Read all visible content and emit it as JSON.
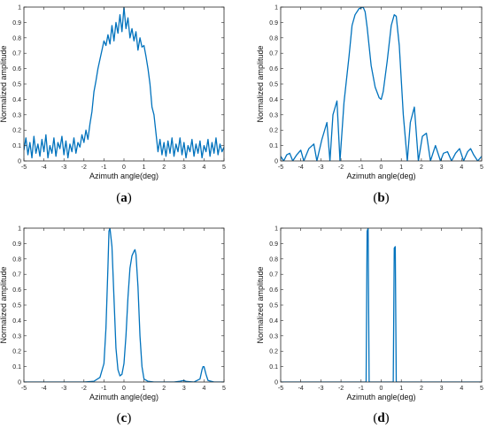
{
  "chart_data": [
    {
      "id": "a",
      "type": "line",
      "caption": "a",
      "xlabel": "Azimuth angle(deg)",
      "ylabel": "Normalized amplitude",
      "xlim": [
        -5,
        5
      ],
      "ylim": [
        0,
        1
      ],
      "xticks": [
        "-5",
        "-4",
        "-3",
        "-2",
        "-1",
        "0",
        "1",
        "2",
        "3",
        "4",
        "5"
      ],
      "yticks": [
        "0",
        "0.1",
        "0.2",
        "0.3",
        "0.4",
        "0.5",
        "0.6",
        "0.7",
        "0.8",
        "0.9",
        "1"
      ],
      "color": "#0072BD",
      "series": [
        {
          "x": [
            -5,
            -4.9,
            -4.8,
            -4.7,
            -4.6,
            -4.5,
            -4.4,
            -4.3,
            -4.2,
            -4.1,
            -4,
            -3.9,
            -3.8,
            -3.7,
            -3.6,
            -3.5,
            -3.4,
            -3.3,
            -3.2,
            -3.1,
            -3,
            -2.9,
            -2.8,
            -2.7,
            -2.6,
            -2.5,
            -2.4,
            -2.3,
            -2.2,
            -2.1,
            -2,
            -1.9,
            -1.8,
            -1.7,
            -1.6,
            -1.5,
            -1.4,
            -1.3,
            -1.2,
            -1.1,
            -1,
            -0.9,
            -0.8,
            -0.7,
            -0.6,
            -0.5,
            -0.4,
            -0.3,
            -0.2,
            -0.1,
            0,
            0.1,
            0.2,
            0.3,
            0.4,
            0.5,
            0.6,
            0.7,
            0.8,
            0.9,
            1,
            1.1,
            1.2,
            1.3,
            1.4,
            1.5,
            1.6,
            1.7,
            1.8,
            1.9,
            2,
            2.1,
            2.2,
            2.3,
            2.4,
            2.5,
            2.6,
            2.7,
            2.8,
            2.9,
            3,
            3.1,
            3.2,
            3.3,
            3.4,
            3.5,
            3.6,
            3.7,
            3.8,
            3.9,
            4,
            4.1,
            4.2,
            4.3,
            4.4,
            4.5,
            4.6,
            4.7,
            4.8,
            4.9,
            5
          ],
          "y": [
            0.07,
            0.15,
            0.04,
            0.12,
            0.02,
            0.16,
            0.05,
            0.11,
            0.03,
            0.14,
            0.06,
            0.17,
            0.02,
            0.1,
            0.05,
            0.15,
            0.03,
            0.12,
            0.08,
            0.16,
            0.04,
            0.13,
            0.02,
            0.11,
            0.06,
            0.15,
            0.05,
            0.12,
            0.09,
            0.17,
            0.12,
            0.2,
            0.14,
            0.24,
            0.32,
            0.45,
            0.52,
            0.6,
            0.66,
            0.72,
            0.78,
            0.75,
            0.82,
            0.76,
            0.88,
            0.78,
            0.9,
            0.83,
            0.95,
            0.84,
            1.0,
            0.86,
            0.93,
            0.8,
            0.86,
            0.78,
            0.84,
            0.72,
            0.8,
            0.74,
            0.75,
            0.68,
            0.6,
            0.5,
            0.35,
            0.3,
            0.18,
            0.06,
            0.14,
            0.04,
            0.12,
            0.03,
            0.13,
            0.05,
            0.15,
            0.03,
            0.11,
            0.06,
            0.15,
            0.04,
            0.12,
            0.02,
            0.1,
            0.06,
            0.14,
            0.03,
            0.11,
            0.05,
            0.13,
            0.02,
            0.1,
            0.06,
            0.14,
            0.03,
            0.12,
            0.05,
            0.15,
            0.04,
            0.11,
            0.06,
            0.09
          ]
        }
      ]
    },
    {
      "id": "b",
      "type": "line",
      "caption": "b",
      "xlabel": "Azimuth angle(deg)",
      "ylabel": "Normalized amplitude",
      "xlim": [
        -5,
        5
      ],
      "ylim": [
        0,
        1
      ],
      "xticks": [
        "-5",
        "-4",
        "-3",
        "-2",
        "-1",
        "0",
        "1",
        "2",
        "3",
        "4",
        "5"
      ],
      "yticks": [
        "0",
        "0.1",
        "0.2",
        "0.3",
        "0.4",
        "0.5",
        "0.6",
        "0.7",
        "0.8",
        "0.9",
        "1"
      ],
      "color": "#0072BD",
      "series": [
        {
          "x": [
            -5,
            -4.85,
            -4.7,
            -4.55,
            -4.4,
            -4.2,
            -4.0,
            -3.85,
            -3.6,
            -3.35,
            -3.2,
            -2.95,
            -2.7,
            -2.55,
            -2.4,
            -2.2,
            -2.05,
            -1.85,
            -1.6,
            -1.45,
            -1.3,
            -1.1,
            -0.9,
            -0.8,
            -0.7,
            -0.5,
            -0.3,
            -0.1,
            0.0,
            0.1,
            0.3,
            0.5,
            0.65,
            0.75,
            0.9,
            1.1,
            1.3,
            1.45,
            1.65,
            1.85,
            2.05,
            2.25,
            2.45,
            2.7,
            2.95,
            3.1,
            3.3,
            3.5,
            3.7,
            3.9,
            4.1,
            4.3,
            4.45,
            4.6,
            4.8,
            5
          ],
          "y": [
            0.03,
            0.0,
            0.04,
            0.05,
            0.0,
            0.04,
            0.07,
            0.0,
            0.08,
            0.11,
            0.0,
            0.14,
            0.25,
            0.0,
            0.3,
            0.39,
            0.0,
            0.38,
            0.68,
            0.88,
            0.95,
            0.99,
            1.0,
            0.97,
            0.87,
            0.62,
            0.48,
            0.41,
            0.4,
            0.45,
            0.65,
            0.88,
            0.95,
            0.94,
            0.75,
            0.3,
            0.0,
            0.25,
            0.35,
            0.0,
            0.16,
            0.18,
            0.0,
            0.1,
            0.0,
            0.05,
            0.06,
            0.0,
            0.05,
            0.08,
            0.0,
            0.06,
            0.08,
            0.04,
            0.0,
            0.03
          ]
        }
      ]
    },
    {
      "id": "c",
      "type": "line",
      "caption": "c",
      "xlabel": "Azimuth angle(deg)",
      "ylabel": "Normalized amplitude",
      "xlim": [
        -5,
        5
      ],
      "ylim": [
        0,
        1
      ],
      "xticks": [
        "-5",
        "-4",
        "-3",
        "-2",
        "-1",
        "0",
        "1",
        "2",
        "3",
        "4",
        "5"
      ],
      "yticks": [
        "0",
        "0.1",
        "0.2",
        "0.3",
        "0.4",
        "0.5",
        "0.6",
        "0.7",
        "0.8",
        "0.9",
        "1"
      ],
      "color": "#0072BD",
      "series": [
        {
          "x": [
            -5,
            -2,
            -1.5,
            -1.2,
            -1.0,
            -0.9,
            -0.8,
            -0.75,
            -0.7,
            -0.6,
            -0.5,
            -0.4,
            -0.3,
            -0.2,
            -0.1,
            0.0,
            0.1,
            0.2,
            0.3,
            0.4,
            0.5,
            0.55,
            0.6,
            0.7,
            0.8,
            0.9,
            1.0,
            1.2,
            1.5,
            2.0,
            2.5,
            2.8,
            2.9,
            3.0,
            3.1,
            3.5,
            3.8,
            3.9,
            3.95,
            4.0,
            4.1,
            4.2,
            4.5,
            5
          ],
          "y": [
            0.0,
            0.0,
            0.005,
            0.03,
            0.12,
            0.35,
            0.75,
            0.98,
            1.0,
            0.88,
            0.55,
            0.22,
            0.08,
            0.04,
            0.05,
            0.12,
            0.3,
            0.55,
            0.74,
            0.82,
            0.85,
            0.86,
            0.83,
            0.62,
            0.3,
            0.1,
            0.02,
            0.005,
            0.0,
            0.0,
            0.0,
            0.005,
            0.008,
            0.01,
            0.004,
            0.0,
            0.02,
            0.08,
            0.1,
            0.1,
            0.05,
            0.01,
            0.0,
            0.0
          ]
        }
      ]
    },
    {
      "id": "d",
      "type": "line",
      "caption": "d",
      "xlabel": "Azimuth angle(deg)",
      "ylabel": "Normalized amplitude",
      "xlim": [
        -5,
        5
      ],
      "ylim": [
        0,
        1
      ],
      "xticks": [
        "-5",
        "-4",
        "-3",
        "-2",
        "-1",
        "0",
        "1",
        "2",
        "3",
        "4",
        "5"
      ],
      "yticks": [
        "0",
        "0.1",
        "0.2",
        "0.3",
        "0.4",
        "0.5",
        "0.6",
        "0.7",
        "0.8",
        "0.9",
        "1"
      ],
      "color": "#0072BD",
      "series": [
        {
          "x": [
            -5,
            -0.95,
            -0.75,
            -0.7,
            -0.65,
            -0.6,
            -0.5,
            0.5,
            0.6,
            0.65,
            0.7,
            0.75,
            0.8,
            1.0,
            5
          ],
          "y": [
            0.0,
            0.0,
            0.0,
            0.98,
            1.0,
            0.0,
            0.0,
            0.0,
            0.0,
            0.87,
            0.88,
            0.0,
            0.0,
            0.0,
            0.0
          ]
        }
      ]
    }
  ]
}
